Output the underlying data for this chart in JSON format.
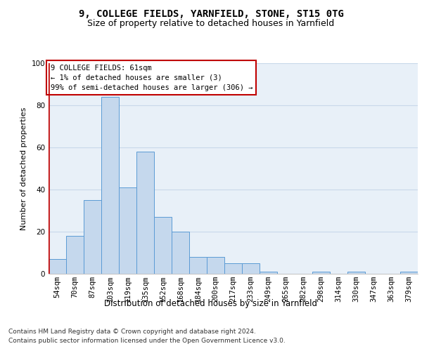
{
  "title_line1": "9, COLLEGE FIELDS, YARNFIELD, STONE, ST15 0TG",
  "title_line2": "Size of property relative to detached houses in Yarnfield",
  "xlabel": "Distribution of detached houses by size in Yarnfield",
  "ylabel": "Number of detached properties",
  "bar_labels": [
    "54sqm",
    "70sqm",
    "87sqm",
    "103sqm",
    "119sqm",
    "135sqm",
    "152sqm",
    "168sqm",
    "184sqm",
    "200sqm",
    "217sqm",
    "233sqm",
    "249sqm",
    "265sqm",
    "282sqm",
    "298sqm",
    "314sqm",
    "330sqm",
    "347sqm",
    "363sqm",
    "379sqm"
  ],
  "bar_values": [
    7,
    18,
    35,
    84,
    41,
    58,
    27,
    20,
    8,
    8,
    5,
    5,
    1,
    0,
    0,
    1,
    0,
    1,
    0,
    0,
    1
  ],
  "bar_color": "#c5d8ed",
  "bar_edge_color": "#5b9bd5",
  "highlight_color": "#c00000",
  "annotation_box_text": "9 COLLEGE FIELDS: 61sqm\n← 1% of detached houses are smaller (3)\n99% of semi-detached houses are larger (306) →",
  "annotation_box_color": "#c00000",
  "ylim": [
    0,
    100
  ],
  "yticks": [
    0,
    20,
    40,
    60,
    80,
    100
  ],
  "grid_color": "#c8d8ea",
  "background_color": "#e8f0f8",
  "footer_line1": "Contains HM Land Registry data © Crown copyright and database right 2024.",
  "footer_line2": "Contains public sector information licensed under the Open Government Licence v3.0.",
  "title1_fontsize": 10,
  "title2_fontsize": 9,
  "xlabel_fontsize": 8.5,
  "ylabel_fontsize": 8,
  "tick_fontsize": 7.5,
  "annotation_fontsize": 7.5,
  "footer_fontsize": 6.5
}
